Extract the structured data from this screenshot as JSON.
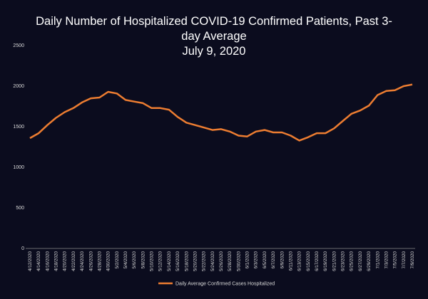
{
  "chart_data": {
    "type": "line",
    "title": "Daily Number of Hospitalized COVID-19 Confirmed Patients, Past 3-day Average",
    "subtitle": "July 9, 2020",
    "categories": [
      "4/12/2020",
      "4/14/2020",
      "4/16/2020",
      "4/18/2020",
      "4/20/2020",
      "4/22/2020",
      "4/24/2020",
      "4/26/2020",
      "4/28/2020",
      "4/30/2020",
      "5/2/2020",
      "5/4/2020",
      "5/6/2020",
      "5/8/2020",
      "5/10/2020",
      "5/12/2020",
      "5/14/2020",
      "5/16/2020",
      "5/18/2020",
      "5/20/2020",
      "5/22/2020",
      "5/24/2020",
      "5/26/2020",
      "5/28/2020",
      "5/30/2020",
      "6/1/2020",
      "6/3/2020",
      "6/5/2020",
      "6/7/2020",
      "6/9/2020",
      "6/11/2020",
      "6/13/2020",
      "6/15/2020",
      "6/17/2020",
      "6/19/2020",
      "6/21/2020",
      "6/23/2020",
      "6/25/2020",
      "6/27/2020",
      "6/29/2020",
      "7/1/2020",
      "7/3/2020",
      "7/5/2020",
      "7/7/2020",
      "7/9/2020"
    ],
    "series": [
      {
        "name": "Daily Average Confirmed Cases Hospitalized",
        "color": "#ed7d31",
        "values": [
          1360,
          1420,
          1520,
          1610,
          1680,
          1730,
          1800,
          1850,
          1860,
          1930,
          1910,
          1830,
          1810,
          1790,
          1730,
          1730,
          1710,
          1620,
          1550,
          1520,
          1490,
          1460,
          1470,
          1440,
          1390,
          1380,
          1440,
          1460,
          1430,
          1430,
          1390,
          1330,
          1370,
          1420,
          1420,
          1480,
          1570,
          1660,
          1700,
          1760,
          1890,
          1940,
          1950,
          2000,
          2020
        ]
      }
    ],
    "ylim": [
      0,
      2500
    ],
    "yticks": [
      0,
      500,
      1000,
      1500,
      2000,
      2500
    ],
    "grid": false,
    "legend": "bottom"
  }
}
